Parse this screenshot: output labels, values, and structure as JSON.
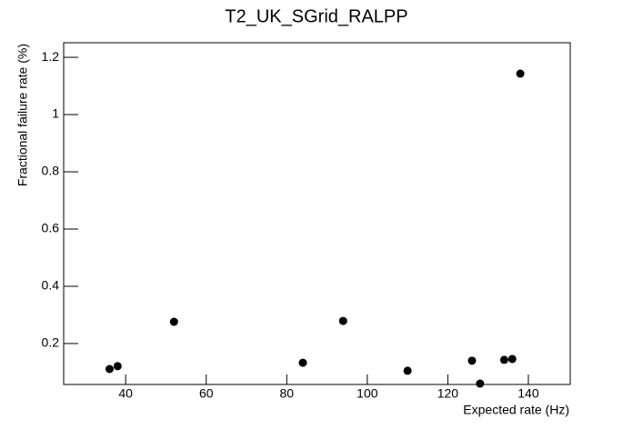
{
  "chart_data": {
    "type": "scatter",
    "title": "T2_UK_SGrid_RALPP",
    "x_label": "Expected rate (Hz)",
    "y_label": "Fractional failure rate (%)",
    "x": [
      36,
      38,
      52,
      84,
      94,
      110,
      126,
      128,
      134,
      136,
      138
    ],
    "values": [
      0.111,
      0.121,
      0.276,
      0.133,
      0.279,
      0.105,
      0.14,
      0.06,
      0.143,
      0.146,
      1.143
    ],
    "color": "#000000",
    "xlim": [
      24.6,
      150.4
    ],
    "xticks": [
      40,
      60,
      80,
      100,
      120,
      140
    ],
    "ylim": [
      0.057,
      1.251
    ],
    "yticks": [
      0.2,
      0.4,
      0.6,
      0.8,
      1,
      1.2
    ],
    "grid": false
  }
}
